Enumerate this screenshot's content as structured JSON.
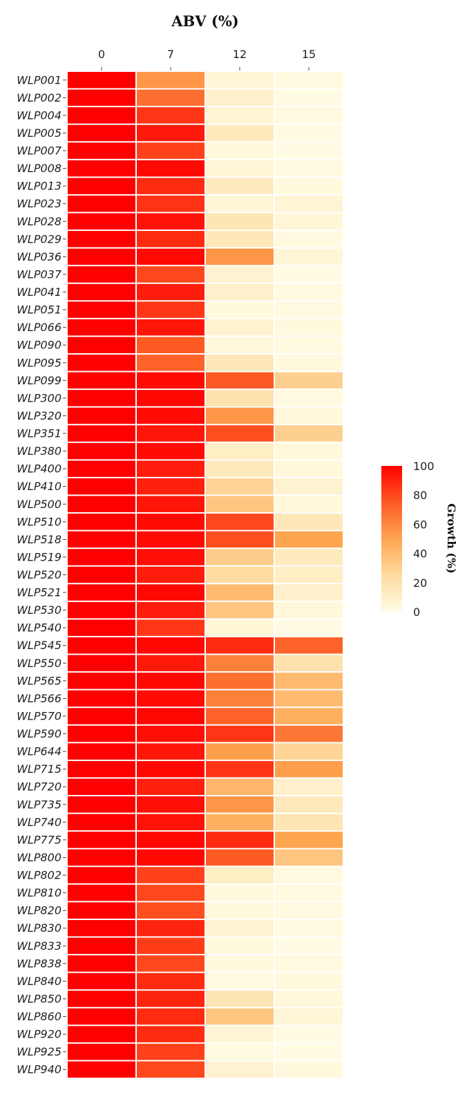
{
  "chart_data": {
    "type": "heatmap",
    "title": "ABV (%)",
    "x": [
      "0",
      "7",
      "12",
      "15"
    ],
    "y": [
      "WLP001",
      "WLP002",
      "WLP004",
      "WLP005",
      "WLP007",
      "WLP008",
      "WLP013",
      "WLP023",
      "WLP028",
      "WLP029",
      "WLP036",
      "WLP037",
      "WLP041",
      "WLP051",
      "WLP066",
      "WLP090",
      "WLP095",
      "WLP099",
      "WLP300",
      "WLP320",
      "WLP351",
      "WLP380",
      "WLP400",
      "WLP410",
      "WLP500",
      "WLP510",
      "WLP518",
      "WLP519",
      "WLP520",
      "WLP521",
      "WLP530",
      "WLP540",
      "WLP545",
      "WLP550",
      "WLP565",
      "WLP566",
      "WLP570",
      "WLP590",
      "WLP644",
      "WLP715",
      "WLP720",
      "WLP735",
      "WLP740",
      "WLP775",
      "WLP800",
      "WLP802",
      "WLP810",
      "WLP820",
      "WLP830",
      "WLP833",
      "WLP838",
      "WLP840",
      "WLP850",
      "WLP860",
      "WLP920",
      "WLP925",
      "WLP940"
    ],
    "z": [
      [
        100,
        55,
        5,
        2
      ],
      [
        100,
        68,
        10,
        1
      ],
      [
        100,
        85,
        6,
        2
      ],
      [
        100,
        93,
        15,
        1
      ],
      [
        100,
        82,
        4,
        1
      ],
      [
        100,
        98,
        5,
        2
      ],
      [
        100,
        88,
        14,
        3
      ],
      [
        100,
        86,
        5,
        6
      ],
      [
        100,
        95,
        18,
        5
      ],
      [
        100,
        88,
        16,
        2
      ],
      [
        100,
        98,
        55,
        5
      ],
      [
        100,
        80,
        8,
        1
      ],
      [
        100,
        92,
        10,
        2
      ],
      [
        100,
        85,
        3,
        2
      ],
      [
        100,
        94,
        8,
        3
      ],
      [
        100,
        75,
        4,
        2
      ],
      [
        100,
        72,
        16,
        3
      ],
      [
        100,
        97,
        75,
        30
      ],
      [
        100,
        98,
        20,
        2
      ],
      [
        100,
        97,
        55,
        4
      ],
      [
        100,
        94,
        78,
        30
      ],
      [
        100,
        97,
        12,
        4
      ],
      [
        100,
        92,
        15,
        4
      ],
      [
        100,
        91,
        28,
        8
      ],
      [
        100,
        94,
        35,
        4
      ],
      [
        100,
        97,
        80,
        16
      ],
      [
        100,
        97,
        78,
        50
      ],
      [
        100,
        96,
        32,
        14
      ],
      [
        100,
        92,
        25,
        12
      ],
      [
        100,
        98,
        40,
        10
      ],
      [
        100,
        92,
        35,
        4
      ],
      [
        100,
        85,
        5,
        1
      ],
      [
        100,
        98,
        88,
        72
      ],
      [
        100,
        93,
        62,
        20
      ],
      [
        100,
        98,
        68,
        40
      ],
      [
        100,
        97,
        62,
        40
      ],
      [
        100,
        98,
        72,
        45
      ],
      [
        100,
        96,
        85,
        65
      ],
      [
        100,
        94,
        52,
        28
      ],
      [
        100,
        98,
        85,
        52
      ],
      [
        100,
        91,
        42,
        10
      ],
      [
        100,
        96,
        55,
        15
      ],
      [
        100,
        95,
        45,
        18
      ],
      [
        100,
        98,
        88,
        50
      ],
      [
        100,
        98,
        75,
        35
      ],
      [
        100,
        82,
        12,
        2
      ],
      [
        100,
        80,
        3,
        2
      ],
      [
        100,
        78,
        3,
        2
      ],
      [
        100,
        90,
        8,
        2
      ],
      [
        100,
        83,
        3,
        1
      ],
      [
        100,
        80,
        3,
        2
      ],
      [
        100,
        88,
        2,
        3
      ],
      [
        100,
        90,
        18,
        4
      ],
      [
        100,
        88,
        35,
        5
      ],
      [
        100,
        88,
        6,
        1
      ],
      [
        100,
        82,
        2,
        1
      ],
      [
        100,
        80,
        8,
        3
      ]
    ],
    "colorbar": {
      "title": "Growth (%)",
      "range": [
        0,
        100
      ],
      "ticks": [
        "0",
        "20",
        "40",
        "60",
        "80",
        "100"
      ]
    },
    "colorscale": [
      [
        0,
        "#fffde6"
      ],
      [
        0.25,
        "#fedba0"
      ],
      [
        0.5,
        "#fea550"
      ],
      [
        0.75,
        "#fd5a24"
      ],
      [
        1,
        "#ff0000"
      ]
    ]
  }
}
